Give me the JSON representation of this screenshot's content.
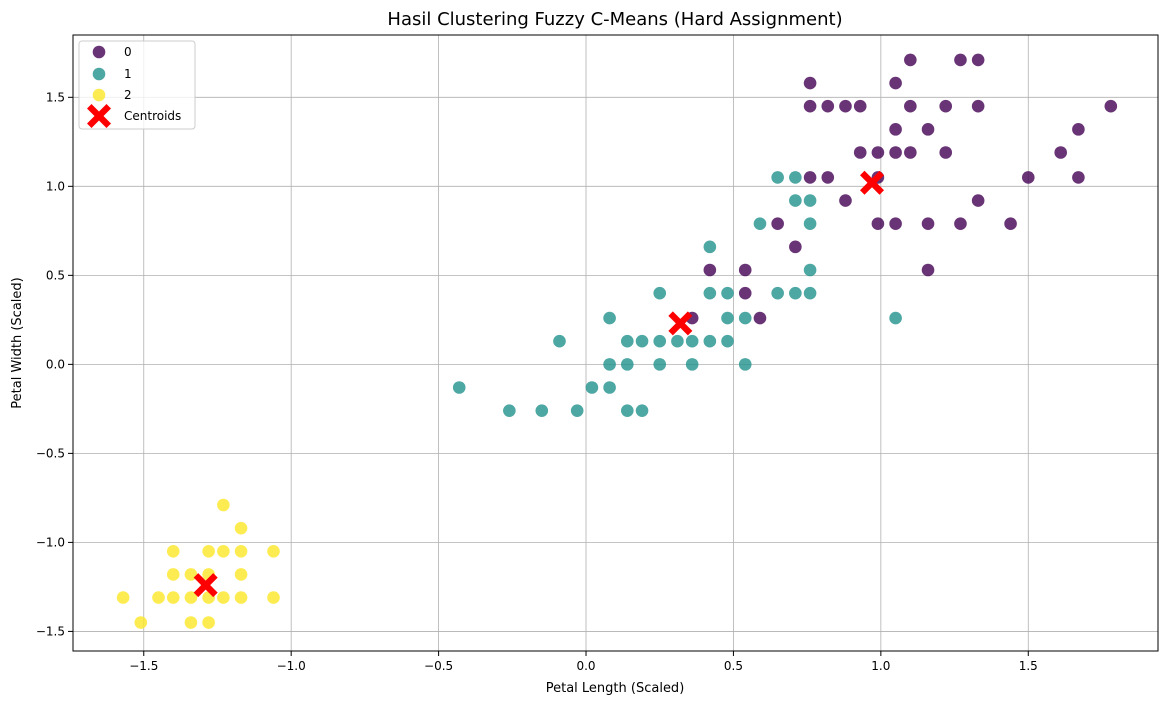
{
  "chart_data": {
    "type": "scatter",
    "title": "Hasil Clustering Fuzzy C-Means (Hard Assignment)",
    "xlabel": "Petal Length (Scaled)",
    "ylabel": "Petal Width (Scaled)",
    "xlim": [
      -1.74,
      1.94
    ],
    "ylim": [
      -1.61,
      1.85
    ],
    "xticks": [
      -1.5,
      -1.0,
      -0.5,
      0.0,
      0.5,
      1.0,
      1.5
    ],
    "xtick_labels": [
      "−1.5",
      "−1.0",
      "−0.5",
      "0.0",
      "0.5",
      "1.0",
      "1.5"
    ],
    "yticks": [
      -1.5,
      -1.0,
      -0.5,
      0.0,
      0.5,
      1.0,
      1.5
    ],
    "ytick_labels": [
      "−1.5",
      "−1.0",
      "−0.5",
      "0.0",
      "0.5",
      "1.0",
      "1.5"
    ],
    "grid": true,
    "legend_position": "top-left",
    "series": [
      {
        "name": "0",
        "color": "#440154",
        "points": [
          [
            0.76,
            1.58
          ],
          [
            1.05,
            1.58
          ],
          [
            1.1,
            1.71
          ],
          [
            1.27,
            1.71
          ],
          [
            1.33,
            1.71
          ],
          [
            0.76,
            1.45
          ],
          [
            0.82,
            1.45
          ],
          [
            0.88,
            1.45
          ],
          [
            0.93,
            1.45
          ],
          [
            1.1,
            1.45
          ],
          [
            1.22,
            1.45
          ],
          [
            1.33,
            1.45
          ],
          [
            1.78,
            1.45
          ],
          [
            1.05,
            1.32
          ],
          [
            1.16,
            1.32
          ],
          [
            1.67,
            1.32
          ],
          [
            0.93,
            1.19
          ],
          [
            0.99,
            1.19
          ],
          [
            1.05,
            1.19
          ],
          [
            1.1,
            1.19
          ],
          [
            1.22,
            1.19
          ],
          [
            1.61,
            1.19
          ],
          [
            0.76,
            1.05
          ],
          [
            0.82,
            1.05
          ],
          [
            0.99,
            1.05
          ],
          [
            1.5,
            1.05
          ],
          [
            1.67,
            1.05
          ],
          [
            0.88,
            0.92
          ],
          [
            1.33,
            0.92
          ],
          [
            0.65,
            0.79
          ],
          [
            0.99,
            0.79
          ],
          [
            1.05,
            0.79
          ],
          [
            1.16,
            0.79
          ],
          [
            1.27,
            0.79
          ],
          [
            1.44,
            0.79
          ],
          [
            0.71,
            0.66
          ],
          [
            0.42,
            0.53
          ],
          [
            0.54,
            0.53
          ],
          [
            1.16,
            0.53
          ],
          [
            0.54,
            0.4
          ],
          [
            0.36,
            0.26
          ],
          [
            0.59,
            0.26
          ]
        ]
      },
      {
        "name": "1",
        "color": "#21918c",
        "points": [
          [
            0.65,
            1.05
          ],
          [
            0.71,
            1.05
          ],
          [
            0.71,
            0.92
          ],
          [
            0.76,
            0.92
          ],
          [
            0.59,
            0.79
          ],
          [
            0.76,
            0.79
          ],
          [
            0.42,
            0.66
          ],
          [
            0.76,
            0.53
          ],
          [
            0.25,
            0.4
          ],
          [
            0.42,
            0.4
          ],
          [
            0.48,
            0.4
          ],
          [
            0.65,
            0.4
          ],
          [
            0.71,
            0.4
          ],
          [
            0.76,
            0.4
          ],
          [
            0.08,
            0.26
          ],
          [
            0.48,
            0.26
          ],
          [
            0.54,
            0.26
          ],
          [
            1.05,
            0.26
          ],
          [
            -0.09,
            0.13
          ],
          [
            0.14,
            0.13
          ],
          [
            0.19,
            0.13
          ],
          [
            0.25,
            0.13
          ],
          [
            0.31,
            0.13
          ],
          [
            0.36,
            0.13
          ],
          [
            0.42,
            0.13
          ],
          [
            0.48,
            0.13
          ],
          [
            0.08,
            0.0
          ],
          [
            0.14,
            0.0
          ],
          [
            0.25,
            0.0
          ],
          [
            0.36,
            0.0
          ],
          [
            0.54,
            0.0
          ],
          [
            -0.43,
            -0.13
          ],
          [
            0.02,
            -0.13
          ],
          [
            0.08,
            -0.13
          ],
          [
            -0.26,
            -0.26
          ],
          [
            -0.15,
            -0.26
          ],
          [
            -0.03,
            -0.26
          ],
          [
            0.14,
            -0.26
          ],
          [
            0.19,
            -0.26
          ]
        ]
      },
      {
        "name": "2",
        "color": "#fde725",
        "points": [
          [
            -1.23,
            -0.79
          ],
          [
            -1.17,
            -0.92
          ],
          [
            -1.4,
            -1.05
          ],
          [
            -1.28,
            -1.05
          ],
          [
            -1.23,
            -1.05
          ],
          [
            -1.17,
            -1.05
          ],
          [
            -1.06,
            -1.05
          ],
          [
            -1.4,
            -1.18
          ],
          [
            -1.34,
            -1.18
          ],
          [
            -1.28,
            -1.18
          ],
          [
            -1.17,
            -1.18
          ],
          [
            -1.57,
            -1.31
          ],
          [
            -1.45,
            -1.31
          ],
          [
            -1.4,
            -1.31
          ],
          [
            -1.34,
            -1.31
          ],
          [
            -1.28,
            -1.31
          ],
          [
            -1.23,
            -1.31
          ],
          [
            -1.17,
            -1.31
          ],
          [
            -1.06,
            -1.31
          ],
          [
            -1.51,
            -1.45
          ],
          [
            -1.34,
            -1.45
          ],
          [
            -1.28,
            -1.45
          ]
        ]
      }
    ],
    "centroids": {
      "name": "Centroids",
      "color": "#ff0000",
      "marker": "X",
      "points": [
        [
          0.97,
          1.02
        ],
        [
          0.32,
          0.23
        ],
        [
          -1.29,
          -1.24
        ]
      ]
    }
  }
}
